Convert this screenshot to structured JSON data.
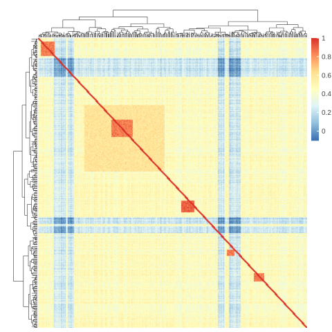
{
  "chart_data": {
    "type": "heatmap",
    "title": "",
    "xlabel": "",
    "ylabel": "",
    "clustering": {
      "row_dendrogram": "left",
      "column_dendrogram": "top"
    },
    "color_scale": {
      "range": [
        -0.1,
        1
      ],
      "ticks": [
        {
          "value": 1,
          "label": "1"
        },
        {
          "value": 0.8,
          "label": "0.8"
        },
        {
          "value": 0.6,
          "label": "0.6"
        },
        {
          "value": 0.4,
          "label": "0.4"
        },
        {
          "value": 0.2,
          "label": "0.2"
        },
        {
          "value": 0,
          "label": "0"
        }
      ],
      "colors": [
        "#3a6fb0",
        "#91bfdb",
        "#e0f3f8",
        "#ffffbf",
        "#fee090",
        "#fc8d59",
        "#d73027"
      ],
      "legend_position": "top-right"
    },
    "diagonal_value": 1,
    "overall_mean_value": 0.45,
    "row_count_approx": 320,
    "column_count_approx": 320,
    "notable_blocks": [
      {
        "rows": [
          0.01,
          0.06
        ],
        "cols": [
          0.01,
          0.06
        ],
        "value": 0.85
      },
      {
        "rows": [
          0.23,
          0.46
        ],
        "cols": [
          0.17,
          0.47
        ],
        "value": 0.6
      },
      {
        "rows": [
          0.28,
          0.34
        ],
        "cols": [
          0.27,
          0.35
        ],
        "value": 0.85
      },
      {
        "rows": [
          0.56,
          0.6
        ],
        "cols": [
          0.53,
          0.58
        ],
        "value": 0.9
      },
      {
        "rows": [
          0.73,
          0.75
        ],
        "cols": [
          0.7,
          0.73
        ],
        "value": 0.85
      },
      {
        "rows": [
          0.81,
          0.84
        ],
        "cols": [
          0.8,
          0.84
        ],
        "value": 0.85
      }
    ],
    "low_bands_columns": [
      0.07,
      0.09,
      0.12,
      0.68,
      0.72,
      0.74
    ],
    "low_bands_rows": [
      0.08,
      0.1,
      0.12,
      0.63,
      0.66
    ]
  }
}
